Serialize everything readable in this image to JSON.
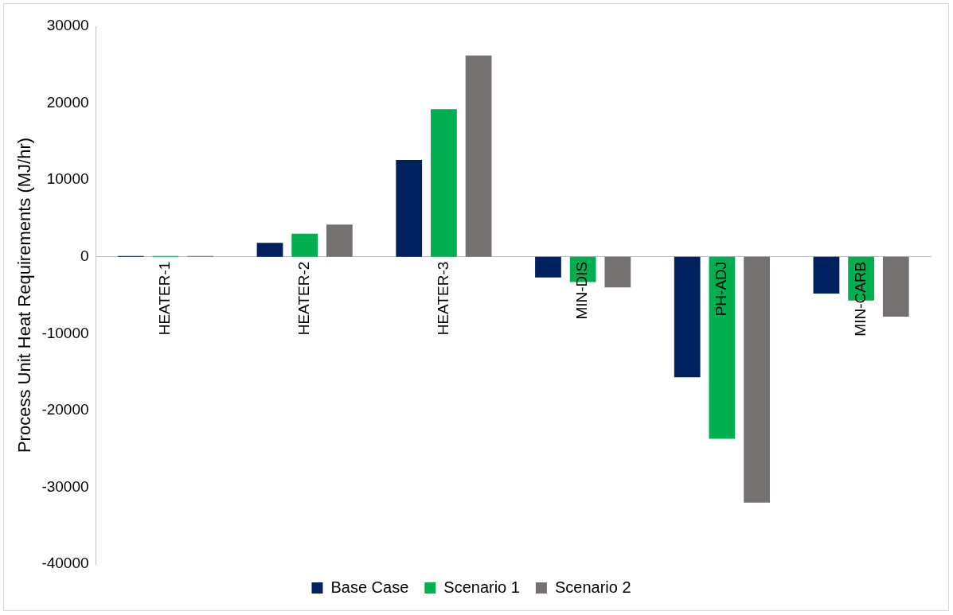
{
  "chart_data": {
    "type": "bar",
    "ylabel": "Process Unit Heat Requirements (MJ/hr)",
    "categories": [
      "HEATER-1",
      "HEATER-2",
      "HEATER-3",
      "MIN-DIS",
      "PH-ADJ",
      "MIN-CARB"
    ],
    "series": [
      {
        "name": "Base Case",
        "color": "#002060",
        "values": [
          100,
          1800,
          12600,
          -2700,
          -15700,
          -4800
        ]
      },
      {
        "name": "Scenario 1",
        "color": "#00b050",
        "values": [
          100,
          3000,
          19200,
          -3300,
          -23700,
          -5700
        ]
      },
      {
        "name": "Scenario 2",
        "color": "#767171",
        "values": [
          100,
          4200,
          26200,
          -4000,
          -32000,
          -7800
        ]
      }
    ],
    "ylim": [
      -40000,
      30000
    ],
    "yticks": [
      -40000,
      -30000,
      -20000,
      -10000,
      0,
      10000,
      20000,
      30000
    ],
    "grid": false,
    "legend": "bottom"
  }
}
